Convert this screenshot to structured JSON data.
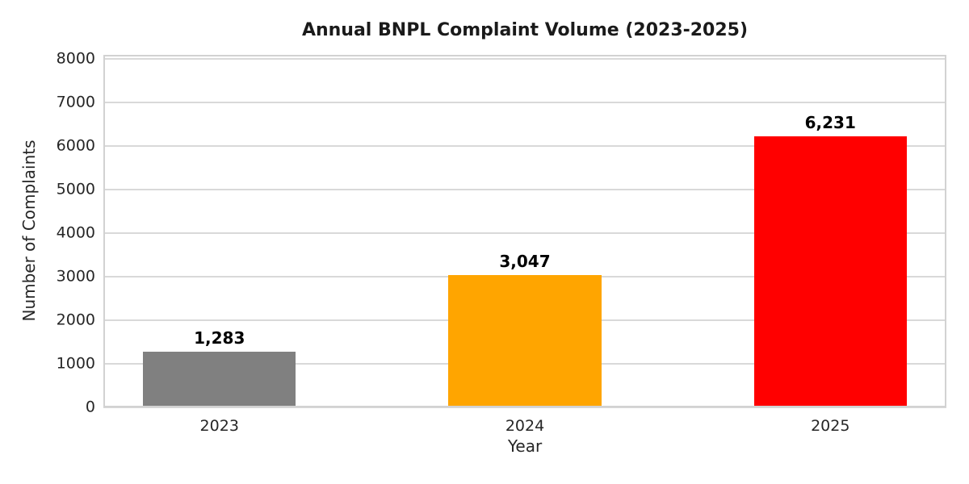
{
  "chart_data": {
    "type": "bar",
    "title": "Annual BNPL Complaint Volume (2023-2025)",
    "xlabel": "Year",
    "ylabel": "Number of Complaints",
    "categories": [
      "2023",
      "2024",
      "2025"
    ],
    "values": [
      1283,
      3047,
      6231
    ],
    "value_labels": [
      "1,283",
      "3,047",
      "6,231"
    ],
    "bar_colors": [
      "#808080",
      "#FFA500",
      "#FF0000"
    ],
    "yticks": [
      0,
      1000,
      2000,
      3000,
      4000,
      5000,
      6000,
      7000,
      8000
    ],
    "ylim": [
      0,
      8100
    ],
    "xlim": [
      -0.38,
      2.38
    ],
    "bar_width": 0.5,
    "grid": "horizontal-only",
    "legend": "none",
    "colors": {
      "background": "#ffffff",
      "grid": "#d9d9d9",
      "spine": "#d2d2d2",
      "tick_text": "#262626",
      "label_text": "#000000"
    }
  }
}
